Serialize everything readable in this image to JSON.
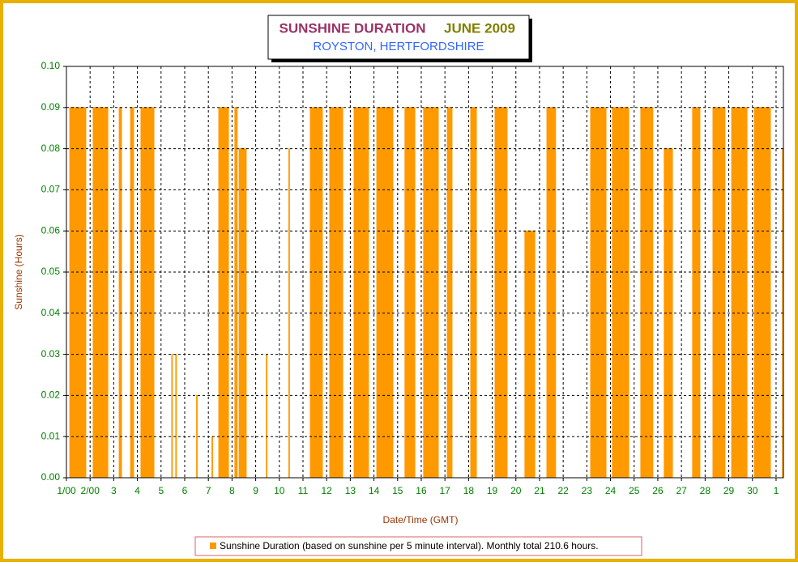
{
  "chart_data": {
    "type": "area",
    "title": "SUNSHINE DURATION",
    "title_period": "JUNE 2009",
    "subtitle": "ROYSTON, HERTFORDSHIRE",
    "x_label": "Date/Time (GMT)",
    "y_label": "Sunshine (Hours)",
    "xlim": [
      1,
      31.31
    ],
    "ylim": [
      0,
      0.1
    ],
    "xticks": [
      {
        "value": 1,
        "label": "1/00"
      },
      {
        "value": 2,
        "label": "2/00"
      },
      3,
      4,
      5,
      6,
      7,
      8,
      9,
      10,
      11,
      12,
      13,
      14,
      15,
      16,
      17,
      18,
      19,
      20,
      21,
      22,
      23,
      24,
      25,
      26,
      27,
      28,
      29,
      30,
      {
        "value": 31,
        "label": "1"
      }
    ],
    "yticks": [
      {
        "value": 0,
        "label": "0.00"
      },
      {
        "value": 0.01,
        "label": "0.01"
      },
      {
        "value": 0.02,
        "label": "0.02"
      },
      {
        "value": 0.03,
        "label": "0.03"
      },
      {
        "value": 0.04,
        "label": "0.04"
      },
      {
        "value": 0.05,
        "label": "0.05"
      },
      {
        "value": 0.06,
        "label": "0.06"
      },
      {
        "value": 0.07,
        "label": "0.07"
      },
      {
        "value": 0.08,
        "label": "0.08"
      },
      {
        "value": 0.09,
        "label": "0.09"
      },
      {
        "value": 0.1,
        "label": "0.10"
      }
    ],
    "grid": true,
    "legend": "bottom",
    "x": [
      1.14,
      1.14,
      1.82,
      1.82,
      2.13,
      2.13,
      2.75,
      2.75,
      3.23,
      3.23,
      3.33,
      3.33,
      3.71,
      3.71,
      3.84,
      3.84,
      4.15,
      4.15,
      4.7,
      4.7,
      5.45,
      5.45,
      5.48,
      5.48,
      5.62,
      5.62,
      5.65,
      5.65,
      6.5,
      6.5,
      6.53,
      6.53,
      7.15,
      7.15,
      7.18,
      7.18,
      7.44,
      7.44,
      7.85,
      7.85,
      8.12,
      8.12,
      8.22,
      8.22,
      8.3,
      8.3,
      8.6,
      8.6,
      9.45,
      9.45,
      9.48,
      9.48,
      10.4,
      10.4,
      10.43,
      10.43,
      11.31,
      11.31,
      11.82,
      11.82,
      12.13,
      12.13,
      12.68,
      12.68,
      13.16,
      13.16,
      13.77,
      13.77,
      14.12,
      14.12,
      14.8,
      14.8,
      15.31,
      15.31,
      15.73,
      15.73,
      16.1,
      16.1,
      16.72,
      16.72,
      17.1,
      17.1,
      17.3,
      17.3,
      18.09,
      18.09,
      18.33,
      18.33,
      19.12,
      19.12,
      19.63,
      19.63,
      20.38,
      20.38,
      20.8,
      20.8,
      21.31,
      21.31,
      21.68,
      21.68,
      23.16,
      23.16,
      23.81,
      23.81,
      24.08,
      24.08,
      24.77,
      24.77,
      25.28,
      25.28,
      25.79,
      25.79,
      26.27,
      26.27,
      26.62,
      26.62,
      27.47,
      27.47,
      27.78,
      27.78,
      28.33,
      28.33,
      28.84,
      28.84,
      29.12,
      29.12,
      29.77,
      29.77,
      30.08,
      30.08,
      30.76,
      30.76,
      31.27,
      31.27,
      31.3,
      31.3
    ],
    "series": [
      {
        "name": "Sunshine Duration (based on sunshine per 5 minute interval). Monthly total 210.6 hours.",
        "color": "#ff9900",
        "values": [
          0,
          0.09,
          0.09,
          0,
          0,
          0.09,
          0.09,
          0,
          0,
          0.09,
          0.09,
          0,
          0,
          0.09,
          0.09,
          0,
          0,
          0.09,
          0.09,
          0,
          0,
          0.03,
          0.03,
          0,
          0,
          0.03,
          0.03,
          0,
          0,
          0.02,
          0.02,
          0,
          0,
          0.01,
          0.01,
          0,
          0,
          0.09,
          0.09,
          0,
          0,
          0.09,
          0.09,
          0,
          0,
          0.08,
          0.08,
          0,
          0,
          0.03,
          0.03,
          0,
          0,
          0.08,
          0.08,
          0,
          0,
          0.09,
          0.09,
          0,
          0,
          0.09,
          0.09,
          0,
          0,
          0.09,
          0.09,
          0,
          0,
          0.09,
          0.09,
          0,
          0,
          0.09,
          0.09,
          0,
          0,
          0.09,
          0.09,
          0,
          0,
          0.09,
          0.09,
          0,
          0,
          0.09,
          0.09,
          0,
          0,
          0.09,
          0.09,
          0,
          0,
          0.06,
          0.06,
          0,
          0,
          0.09,
          0.09,
          0,
          0,
          0.09,
          0.09,
          0,
          0,
          0.09,
          0.09,
          0,
          0,
          0.09,
          0.09,
          0,
          0,
          0.08,
          0.08,
          0,
          0,
          0.09,
          0.09,
          0,
          0,
          0.09,
          0.09,
          0,
          0,
          0.09,
          0.09,
          0,
          0,
          0.09,
          0.09,
          0,
          0,
          0.08,
          0.08,
          0
        ]
      }
    ]
  }
}
